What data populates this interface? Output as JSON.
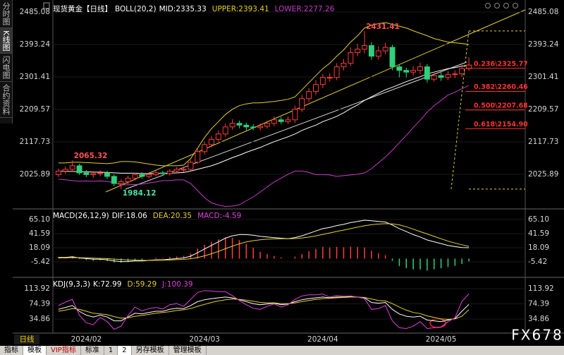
{
  "sidebar": [
    "分时图",
    "K线图",
    "闪电图",
    "合约资料"
  ],
  "period": "日线",
  "toolbar": [
    "指标",
    "模板",
    "VIP指标",
    "标准",
    "1",
    "2",
    "另存模板",
    "管理模板"
  ],
  "watermark": "FX678",
  "chart_data": [
    {
      "type": "candlestick",
      "title": "现货黄金【日线】",
      "indicator": "BOLL(20,2)",
      "up_color": "#ff3c3c",
      "down_color": "#2fd07a",
      "open": [
        2025,
        2035,
        2040,
        2050,
        2030,
        2025,
        2028,
        2030,
        2020,
        2000,
        2005,
        2015,
        2025,
        2020,
        2025,
        2030,
        2028,
        2035,
        2040,
        2040,
        2060,
        2090,
        2110,
        2125,
        2140,
        2160,
        2170,
        2165,
        2160,
        2158,
        2162,
        2170,
        2180,
        2175,
        2180,
        2210,
        2240,
        2260,
        2280,
        2300,
        2300,
        2330,
        2340,
        2370,
        2380,
        2390,
        2360,
        2375,
        2385,
        2330,
        2320,
        2315,
        2320,
        2330,
        2295,
        2305,
        2300,
        2308,
        2310,
        2325
      ],
      "high": [
        2042,
        2048,
        2065.32,
        2056,
        2038,
        2035,
        2038,
        2036,
        2025,
        2012,
        2022,
        2030,
        2032,
        2031,
        2036,
        2036,
        2040,
        2046,
        2048,
        2066,
        2098,
        2118,
        2135,
        2150,
        2170,
        2182,
        2178,
        2172,
        2168,
        2170,
        2178,
        2190,
        2188,
        2190,
        2220,
        2250,
        2270,
        2292,
        2310,
        2312,
        2340,
        2352,
        2385,
        2395,
        2431.41,
        2400,
        2388,
        2398,
        2392,
        2338,
        2328,
        2332,
        2342,
        2338,
        2312,
        2315,
        2318,
        2320,
        2335,
        2357
      ],
      "low": [
        2018,
        2028,
        2032,
        2024,
        2018,
        2016,
        2020,
        2012,
        1992,
        1984.12,
        1998,
        2008,
        2014,
        2015,
        2020,
        2022,
        2022,
        2030,
        2032,
        2035,
        2055,
        2082,
        2102,
        2118,
        2132,
        2152,
        2156,
        2150,
        2150,
        2150,
        2155,
        2162,
        2168,
        2168,
        2172,
        2202,
        2230,
        2250,
        2270,
        2288,
        2292,
        2320,
        2332,
        2360,
        2368,
        2350,
        2350,
        2365,
        2320,
        2300,
        2300,
        2305,
        2310,
        2285,
        2288,
        2290,
        2292,
        2298,
        2302,
        2318
      ],
      "close": [
        2035,
        2040,
        2050,
        2030,
        2025,
        2028,
        2030,
        2020,
        2000,
        2005,
        2015,
        2025,
        2020,
        2025,
        2030,
        2028,
        2035,
        2040,
        2040,
        2060,
        2090,
        2110,
        2125,
        2140,
        2160,
        2170,
        2165,
        2160,
        2158,
        2162,
        2170,
        2180,
        2175,
        2180,
        2210,
        2240,
        2260,
        2280,
        2300,
        2300,
        2330,
        2340,
        2370,
        2380,
        2390,
        2360,
        2375,
        2385,
        2330,
        2320,
        2315,
        2320,
        2330,
        2295,
        2305,
        2300,
        2308,
        2310,
        2325,
        2335
      ],
      "series": [
        {
          "name": "MID:",
          "color": "#ffffff",
          "values": [
            2035,
            2034,
            2034,
            2033,
            2033,
            2032,
            2032,
            2031,
            2030,
            2029,
            2029,
            2029,
            2028,
            2028,
            2028,
            2029,
            2029,
            2030,
            2031,
            2035,
            2040,
            2045,
            2050,
            2057,
            2065,
            2073,
            2080,
            2088,
            2095,
            2102,
            2110,
            2118,
            2125,
            2132,
            2140,
            2150,
            2158,
            2165,
            2175,
            2182,
            2190,
            2200,
            2212,
            2222,
            2235,
            2245,
            2255,
            2265,
            2272,
            2280,
            2288,
            2295,
            2302,
            2310,
            2315,
            2320,
            2325,
            2328,
            2332,
            2335.33
          ]
        },
        {
          "name": "UPPER:",
          "color": "#e6d030",
          "values": [
            2058,
            2058,
            2060,
            2060,
            2059,
            2058,
            2057,
            2056,
            2058,
            2062,
            2062,
            2061,
            2058,
            2055,
            2052,
            2050,
            2050,
            2050,
            2052,
            2070,
            2100,
            2130,
            2155,
            2175,
            2195,
            2210,
            2220,
            2225,
            2228,
            2228,
            2230,
            2232,
            2235,
            2238,
            2245,
            2265,
            2285,
            2305,
            2325,
            2340,
            2360,
            2378,
            2400,
            2418,
            2440,
            2448,
            2452,
            2455,
            2450,
            2445,
            2440,
            2432,
            2425,
            2418,
            2410,
            2405,
            2400,
            2398,
            2396,
            2393.41
          ]
        },
        {
          "name": "LOWER:",
          "color": "#c43cc8",
          "values": [
            2012,
            2010,
            2008,
            2006,
            2007,
            2006,
            2007,
            2006,
            2002,
            1996,
            1996,
            1997,
            1998,
            2001,
            2004,
            2008,
            2008,
            2010,
            2010,
            2000,
            1980,
            1960,
            1945,
            1939,
            1935,
            1936,
            1940,
            1951,
            1962,
            1976,
            1990,
            2004,
            2015,
            2026,
            2035,
            2035,
            2031,
            2025,
            2025,
            2024,
            2020,
            2022,
            2024,
            2026,
            2030,
            2042,
            2058,
            2075,
            2094,
            2115,
            2136,
            2158,
            2179,
            2202,
            2220,
            2235,
            2250,
            2258,
            2268,
            2277.26
          ]
        }
      ],
      "marked_highs": [
        2,
        44
      ],
      "marked_lows": [
        9
      ],
      "fibonacci": [
        {
          "value": 2325.77,
          "label": "0.236\\2325.77"
        },
        {
          "value": 2260.46,
          "label": "0.382\\2260.46"
        },
        {
          "value": 2207.68,
          "label": "0.500\\2207.68"
        },
        {
          "value": 2154.9,
          "label": "0.618\\2154.90"
        }
      ],
      "fib_color": "#ff3030",
      "ylim": [
        1930,
        2509
      ],
      "yticks": [
        2025.89,
        2117.73,
        2209.57,
        2301.41,
        2393.24,
        2485.08
      ]
    },
    {
      "type": "macd",
      "title": "MACD(26,12,9)",
      "series": [
        {
          "name": "DIF:",
          "color": "#ffffff",
          "values": [
            2,
            2,
            3,
            1,
            0,
            -1,
            -1,
            -2,
            -4,
            -5,
            -5,
            -4,
            -4,
            -3,
            -2,
            -2,
            -1,
            0,
            1,
            4,
            10,
            16,
            22,
            28,
            34,
            38,
            40,
            40,
            39,
            37,
            36,
            35,
            34,
            33,
            35,
            38,
            42,
            46,
            50,
            52,
            55,
            57,
            60,
            62,
            64,
            63,
            62,
            61,
            56,
            50,
            45,
            40,
            36,
            31,
            28,
            25,
            22,
            20,
            18.5,
            18.06
          ]
        },
        {
          "name": "DEA:",
          "color": "#e6d030",
          "values": [
            1,
            1.2,
            1.6,
            1.5,
            1.2,
            0.8,
            0.4,
            0,
            -0.8,
            -1.6,
            -2.3,
            -2.6,
            -2.9,
            -2.9,
            -2.7,
            -2.6,
            -2.3,
            -1.8,
            -1.3,
            -0.2,
            1.8,
            4.6,
            8.1,
            12,
            16.4,
            20.7,
            24.6,
            27.7,
            29.9,
            31.3,
            32.3,
            32.8,
            33,
            33,
            33.4,
            34.3,
            35.8,
            37.9,
            40.3,
            42.7,
            45.2,
            47.5,
            50,
            52.4,
            54.7,
            56.4,
            57.5,
            58.2,
            57.8,
            56.2,
            53,
            49,
            45,
            41,
            37,
            33,
            29,
            26,
            23,
            20.35
          ]
        },
        {
          "name": "MACD:",
          "color": "#e040e0",
          "up_color": "#ff3c3c",
          "down_color": "#2fd07a",
          "values": [
            2,
            1.6,
            2.8,
            -1,
            -2.4,
            -3.6,
            -2.8,
            -4,
            -6.4,
            -6.8,
            -5.4,
            -2.8,
            -2.2,
            -0.2,
            1.4,
            1.2,
            2.6,
            3.6,
            4.6,
            8.4,
            16.4,
            22.8,
            27.8,
            32,
            35.2,
            34.6,
            30.8,
            24.6,
            18.2,
            11.4,
            7.4,
            4.4,
            2,
            0,
            3.2,
            7.4,
            12.4,
            16.2,
            19.4,
            18.6,
            19.6,
            19,
            20,
            19.2,
            18.6,
            13.2,
            9,
            5.6,
            -3.6,
            -12.4,
            -16,
            -18,
            -18,
            -20,
            -18,
            -16,
            -14,
            -12,
            -9,
            -4.59
          ]
        }
      ],
      "ylim": [
        -30.1,
        80.4
      ],
      "yticks": [
        -5.42,
        18.09,
        41.59,
        {
          "value": 65.1,
          "label": "65.10"
        }
      ]
    },
    {
      "type": "line",
      "title": "KDJ(9,3,3)",
      "categories": [
        null,
        null,
        null,
        null,
        "2024/02",
        null,
        null,
        null,
        null,
        null,
        null,
        null,
        null,
        null,
        null,
        null,
        null,
        null,
        null,
        null,
        null,
        "2024/03",
        null,
        null,
        null,
        null,
        null,
        null,
        null,
        null,
        null,
        null,
        null,
        null,
        null,
        null,
        null,
        null,
        "2024/04",
        null,
        null,
        null,
        null,
        null,
        null,
        null,
        null,
        null,
        null,
        null,
        null,
        null,
        null,
        null,
        null,
        "2024/05",
        null,
        null,
        null,
        null
      ],
      "series": [
        {
          "name": "K:",
          "color": "#ffffff",
          "values": [
            60,
            65,
            70,
            55,
            45,
            40,
            45,
            40,
            30,
            30,
            40,
            50,
            48,
            52,
            55,
            55,
            60,
            63,
            62,
            70,
            80,
            85,
            88,
            90,
            92,
            90,
            85,
            80,
            75,
            72,
            74,
            76,
            72,
            74,
            80,
            85,
            88,
            90,
            92,
            90,
            92,
            92,
            93,
            92,
            90,
            78,
            76,
            78,
            60,
            48,
            42,
            40,
            42,
            32,
            30,
            28,
            32,
            36,
            55,
            72.99
          ]
        },
        {
          "name": "D:",
          "color": "#e6d030",
          "values": [
            55,
            58,
            62,
            60,
            55,
            50,
            48,
            46,
            41,
            37,
            38,
            42,
            44,
            47,
            50,
            52,
            54,
            57,
            59,
            62,
            68,
            73,
            78,
            82,
            85,
            87,
            86,
            84,
            81,
            78,
            77,
            77,
            75,
            75,
            77,
            80,
            83,
            86,
            88,
            89,
            90,
            91,
            92,
            92,
            91,
            87,
            83,
            82,
            75,
            66,
            58,
            52,
            49,
            43,
            39,
            35,
            34,
            35,
            42,
            59.29
          ]
        },
        {
          "name": "J:",
          "color": "#e040e0",
          "values": [
            70,
            79,
            86,
            45,
            25,
            20,
            39,
            28,
            8,
            16,
            44,
            66,
            56,
            62,
            65,
            61,
            72,
            75,
            68,
            86,
            104,
            109,
            108,
            106,
            106,
            96,
            83,
            72,
            63,
            60,
            68,
            74,
            66,
            72,
            86,
            95,
            98,
            98,
            100,
            92,
            96,
            94,
            95,
            92,
            88,
            60,
            62,
            70,
            30,
            12,
            10,
            16,
            28,
            10,
            12,
            14,
            28,
            38,
            81,
            100.39
          ]
        }
      ],
      "ylim": [
        1.7,
        139.7
      ],
      "yticks": [
        34.86,
        74.39,
        113.92
      ]
    }
  ]
}
